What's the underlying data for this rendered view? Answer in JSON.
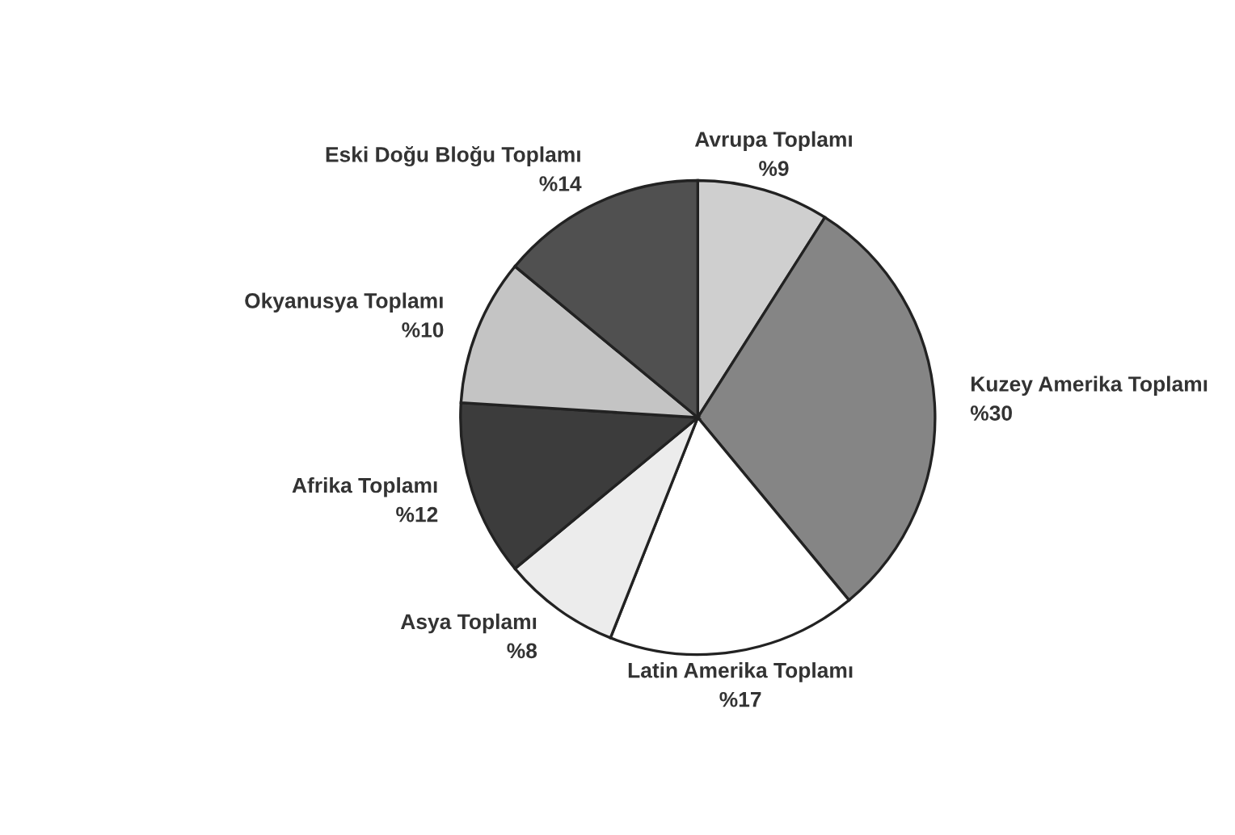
{
  "chart_data": {
    "type": "pie",
    "categories": [
      "Avrupa Toplamı",
      "Kuzey Amerika Toplamı",
      "Latin Amerika Toplamı",
      "Asya Toplamı",
      "Afrika Toplamı",
      "Okyanusya Toplamı",
      "Eski Doğu Bloğu Toplamı"
    ],
    "values": [
      9,
      30,
      17,
      8,
      12,
      10,
      14
    ],
    "value_labels": [
      "%9",
      "%30",
      "%17",
      "%8",
      "%12",
      "%10",
      "%14"
    ],
    "colors": [
      "#cfcfcf",
      "#858585",
      "#ffffff",
      "#ececec",
      "#3c3c3c",
      "#c4c4c4",
      "#505050"
    ]
  }
}
